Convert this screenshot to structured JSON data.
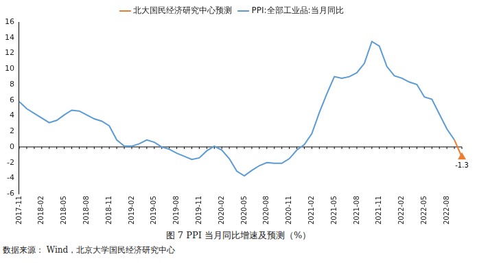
{
  "chart_data": {
    "type": "line",
    "title": "图 7 PPI 当月同比增速及预测（%）",
    "note": "数据来源： Wind，北京大学国民经济研究中心",
    "categories": [
      "2017-11",
      null,
      null,
      "2018-02",
      null,
      null,
      "2018-05",
      null,
      null,
      "2018-08",
      null,
      null,
      "2018-11",
      null,
      null,
      "2019-02",
      null,
      null,
      "2019-05",
      null,
      null,
      "2019-08",
      null,
      null,
      "2019-11",
      null,
      null,
      "2020-02",
      null,
      null,
      "2020-05",
      null,
      null,
      "2020-08",
      null,
      null,
      "2020-11",
      null,
      null,
      "2021-02",
      null,
      null,
      "2021-05",
      null,
      null,
      "2021-08",
      null,
      null,
      "2021-11",
      null,
      null,
      "2022-02",
      null,
      null,
      "2022-05",
      null,
      null,
      "2022-08",
      null,
      null
    ],
    "series": [
      {
        "name": "PPI:全部工业品:当月同比",
        "color": "#5b9bd5",
        "marker": "none",
        "line_style": "solid",
        "values": [
          5.8,
          4.9,
          4.3,
          3.7,
          3.1,
          3.4,
          4.1,
          4.7,
          4.6,
          4.1,
          3.6,
          3.3,
          2.7,
          0.9,
          0.1,
          0.1,
          0.4,
          0.9,
          0.6,
          0.0,
          -0.3,
          -0.8,
          -1.2,
          -1.6,
          -1.4,
          -0.5,
          0.1,
          -0.4,
          -1.5,
          -3.1,
          -3.7,
          -3.0,
          -2.4,
          -2.0,
          -2.1,
          -2.1,
          -1.5,
          -0.4,
          0.3,
          1.7,
          4.4,
          6.8,
          9.0,
          8.8,
          9.0,
          9.5,
          10.7,
          13.5,
          12.9,
          10.3,
          9.1,
          8.8,
          8.3,
          8.0,
          6.4,
          6.1,
          4.2,
          2.3,
          0.9,
          null
        ]
      },
      {
        "name": "北大国民经济研究中心预测",
        "color": "#ed7d31",
        "marker": "triangle",
        "line_style": "solid",
        "data_labels": true,
        "values": [
          null,
          null,
          null,
          null,
          null,
          null,
          null,
          null,
          null,
          null,
          null,
          null,
          null,
          null,
          null,
          null,
          null,
          null,
          null,
          null,
          null,
          null,
          null,
          null,
          null,
          null,
          null,
          null,
          null,
          null,
          null,
          null,
          null,
          null,
          null,
          null,
          null,
          null,
          null,
          null,
          null,
          null,
          null,
          null,
          null,
          null,
          null,
          null,
          null,
          null,
          null,
          null,
          null,
          null,
          null,
          null,
          null,
          null,
          0.9,
          -1.3
        ],
        "value_labels": [
          null,
          null,
          null,
          null,
          null,
          null,
          null,
          null,
          null,
          null,
          null,
          null,
          null,
          null,
          null,
          null,
          null,
          null,
          null,
          null,
          null,
          null,
          null,
          null,
          null,
          null,
          null,
          null,
          null,
          null,
          null,
          null,
          null,
          null,
          null,
          null,
          null,
          null,
          null,
          null,
          null,
          null,
          null,
          null,
          null,
          null,
          null,
          null,
          null,
          null,
          null,
          null,
          null,
          null,
          null,
          null,
          null,
          null,
          null,
          "-1.3"
        ]
      }
    ],
    "ylim": [
      -6,
      16
    ],
    "yticks": [
      -6,
      -4,
      -2,
      0,
      2,
      4,
      6,
      8,
      10,
      12,
      14,
      16
    ],
    "grid": false,
    "legend": "top"
  }
}
